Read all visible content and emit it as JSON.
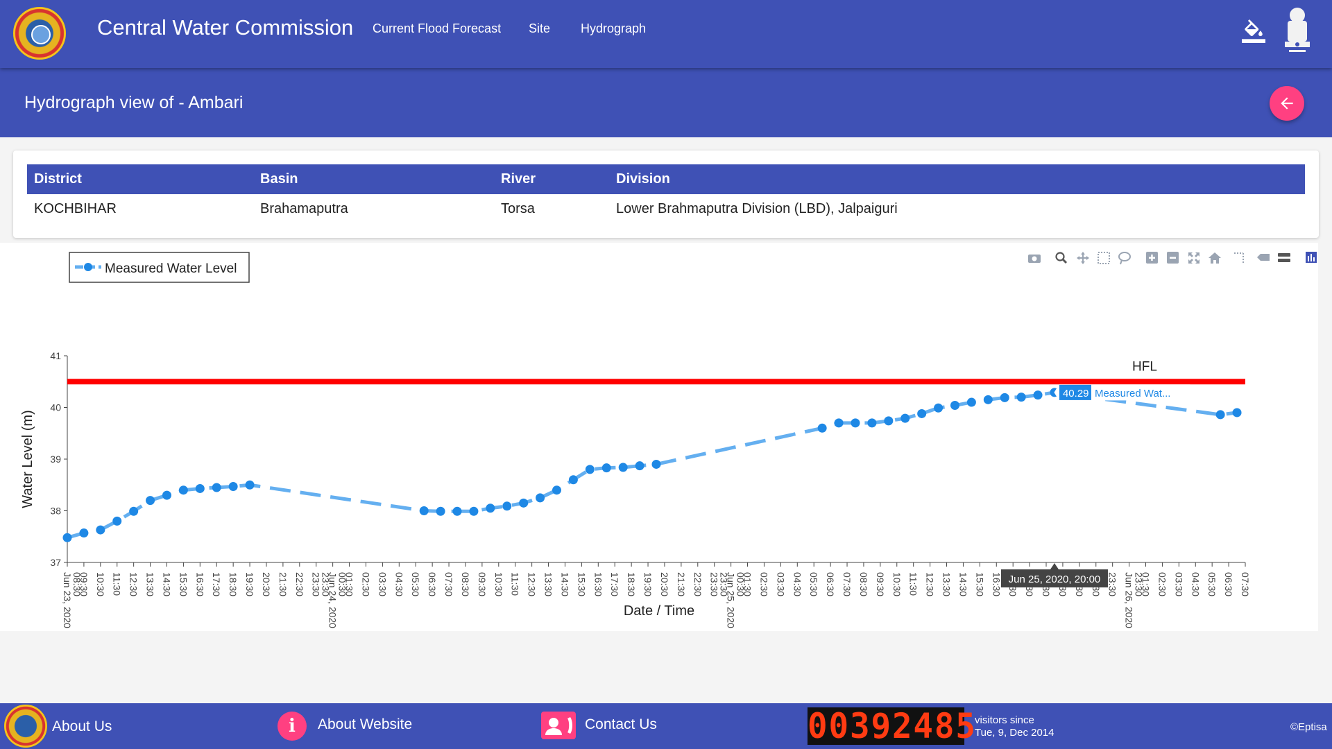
{
  "header": {
    "title": "Central Water Commission",
    "nav": [
      "Current Flood Forecast",
      "Site",
      "Hydrograph"
    ],
    "icons": [
      "cwc-logo-icon",
      "paint-bucket-icon",
      "national-emblem-icon"
    ]
  },
  "page": {
    "title": "Hydrograph view of - Ambari",
    "back_icon": "arrow-left-icon"
  },
  "site_info": {
    "columns": [
      "District",
      "Basin",
      "River",
      "Division"
    ],
    "row": [
      "KOCHBIHAR",
      "Brahamaputra",
      "Torsa",
      "Lower Brahmaputra Division (LBD), Jalpaiguri"
    ]
  },
  "toolbar": {
    "icons": [
      "camera-icon",
      "zoom-icon",
      "pan-icon",
      "box-select-icon",
      "lasso-select-icon",
      "zoom-in-icon",
      "zoom-out-icon",
      "autoscale-icon",
      "reset-axes-icon",
      "spike-lines-icon",
      "hover-closest-icon",
      "hover-compare-icon",
      "plotly-logo-icon"
    ]
  },
  "colors": {
    "primary": "#3f51b5",
    "accent": "#ff4081",
    "series": "#1e88e5",
    "series_line": "#64aff0",
    "hfl": "#ff0000"
  },
  "chart_data": {
    "type": "line",
    "xlabel": "Date / Time",
    "ylabel": "Water Level (m)",
    "ylim": [
      37,
      41
    ],
    "yticks": [
      37,
      38,
      39,
      40,
      41
    ],
    "legend": {
      "placement": "top-left",
      "entries": [
        "Measured Water Level"
      ]
    },
    "grid": false,
    "x_start": "Jun 23, 2020 08:30",
    "x_end": "Jun 26, 2020 07:30",
    "xtick_labels": [
      "Jun 23, 2020",
      "09:30",
      "10:30",
      "11:30",
      "12:30",
      "13:30",
      "14:30",
      "15:30",
      "16:30",
      "17:30",
      "18:30",
      "19:30",
      "20:30",
      "21:30",
      "22:30",
      "23:30",
      "Jun 24, 2020",
      "01:30",
      "02:30",
      "03:30",
      "04:30",
      "05:30",
      "06:30",
      "07:30",
      "08:30",
      "09:30",
      "10:30",
      "11:30",
      "12:30",
      "13:30",
      "14:30",
      "15:30",
      "16:30",
      "17:30",
      "18:30",
      "19:30",
      "20:30",
      "21:30",
      "22:30",
      "23:30",
      "Jun 25, 2020",
      "01:30",
      "02:30",
      "03:30",
      "04:30",
      "05:30",
      "06:30",
      "07:30",
      "08:30",
      "09:30",
      "10:30",
      "11:30",
      "12:30",
      "13:30",
      "14:30",
      "15:30",
      "16:30",
      "17:30",
      "18:30",
      "19:30",
      "20:30",
      "21:30",
      "22:30",
      "23:30",
      "Jun 26, 2020",
      "01:30",
      "02:30",
      "03:30",
      "04:30",
      "05:30",
      "06:30",
      "07:30"
    ],
    "xtick_sublabels": [
      "08:30",
      "23:30",
      "00:30",
      "23:30",
      "00:30",
      "23:30",
      "00:30"
    ],
    "hfl": {
      "label": "HFL",
      "value": 40.5
    },
    "series": [
      {
        "name": "Measured Water Level",
        "x": [
          "Jun 23, 2020 08:30",
          "Jun 23, 2020 09:30",
          "Jun 23, 2020 10:30",
          "Jun 23, 2020 11:30",
          "Jun 23, 2020 12:30",
          "Jun 23, 2020 13:30",
          "Jun 23, 2020 14:30",
          "Jun 23, 2020 15:30",
          "Jun 23, 2020 16:30",
          "Jun 23, 2020 17:30",
          "Jun 23, 2020 18:30",
          "Jun 23, 2020 19:30",
          "Jun 24, 2020 06:00",
          "Jun 24, 2020 07:00",
          "Jun 24, 2020 08:00",
          "Jun 24, 2020 09:00",
          "Jun 24, 2020 10:00",
          "Jun 24, 2020 11:00",
          "Jun 24, 2020 12:00",
          "Jun 24, 2020 13:00",
          "Jun 24, 2020 14:00",
          "Jun 24, 2020 15:00",
          "Jun 24, 2020 16:00",
          "Jun 24, 2020 17:00",
          "Jun 24, 2020 18:00",
          "Jun 24, 2020 19:00",
          "Jun 24, 2020 20:00",
          "Jun 25, 2020 06:00",
          "Jun 25, 2020 07:00",
          "Jun 25, 2020 08:00",
          "Jun 25, 2020 09:00",
          "Jun 25, 2020 10:00",
          "Jun 25, 2020 11:00",
          "Jun 25, 2020 12:00",
          "Jun 25, 2020 13:00",
          "Jun 25, 2020 14:00",
          "Jun 25, 2020 15:00",
          "Jun 25, 2020 16:00",
          "Jun 25, 2020 17:00",
          "Jun 25, 2020 18:00",
          "Jun 25, 2020 19:00",
          "Jun 25, 2020 20:00",
          "Jun 26, 2020 06:00",
          "Jun 26, 2020 07:00"
        ],
        "y": [
          37.48,
          37.57,
          37.63,
          37.8,
          37.99,
          38.2,
          38.3,
          38.4,
          38.43,
          38.45,
          38.47,
          38.5,
          38.0,
          37.99,
          37.99,
          37.99,
          38.05,
          38.09,
          38.15,
          38.25,
          38.4,
          38.6,
          38.8,
          38.83,
          38.84,
          38.87,
          38.9,
          39.6,
          39.7,
          39.7,
          39.7,
          39.74,
          39.79,
          39.88,
          39.99,
          40.04,
          40.1,
          40.15,
          40.19,
          40.2,
          40.24,
          40.29,
          39.86,
          39.9
        ]
      }
    ],
    "hover": {
      "value": "40.29",
      "series": "Measured Wat...",
      "x_label": "Jun 25, 2020, 20:00"
    }
  },
  "footer": {
    "links": [
      "About Us",
      "About Website",
      "Contact Us"
    ],
    "icons": [
      "cwc-logo-icon",
      "info-icon",
      "contact-icon"
    ],
    "visitor_count": "00392485",
    "since_label": "visitors since",
    "since_date": "Tue, 9, Dec 2014",
    "credit": "©Eptisa"
  }
}
